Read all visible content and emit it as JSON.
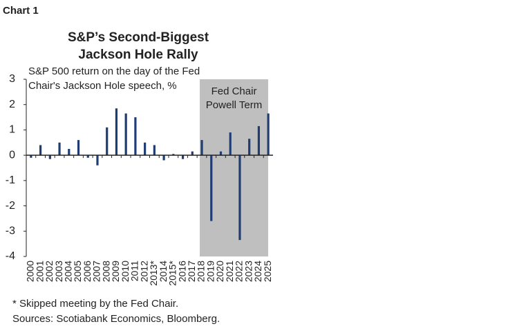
{
  "chart_data": {
    "type": "bar",
    "label": "Chart 1",
    "title": [
      "S&P’s Second-Biggest",
      "Jackson Hole Rally"
    ],
    "subtitle": [
      "S&P 500 return on the day of the Fed",
      "Chair's Jackson Hole speech, %"
    ],
    "categories": [
      "2000",
      "2001",
      "2002",
      "2003",
      "2004",
      "2005",
      "2006",
      "2007",
      "2008",
      "2009",
      "2010",
      "2011",
      "2012",
      "2013*",
      "2014",
      "2015*",
      "2016",
      "2017",
      "2018",
      "2019",
      "2020",
      "2021",
      "2022",
      "2023",
      "2024",
      "2025"
    ],
    "values": [
      -0.1,
      0.4,
      -0.15,
      0.5,
      0.25,
      0.6,
      -0.1,
      -0.4,
      1.1,
      1.85,
      1.65,
      1.5,
      0.5,
      0.4,
      -0.2,
      0.05,
      -0.15,
      0.15,
      0.6,
      -2.6,
      0.15,
      0.9,
      -3.35,
      0.65,
      1.15,
      1.65
    ],
    "color": "#1f3d73",
    "ylim": [
      -4,
      3
    ],
    "yticks": [
      -4,
      -3,
      -2,
      -1,
      0,
      1,
      2,
      3
    ],
    "shade": {
      "from": "2018",
      "text": [
        "Fed Chair",
        "Powell Term"
      ],
      "color": "#bfbfbf"
    },
    "notes": [
      "* Skipped meeting by the Fed Chair.",
      "Sources: Scotiabank Economics, Bloomberg."
    ]
  }
}
